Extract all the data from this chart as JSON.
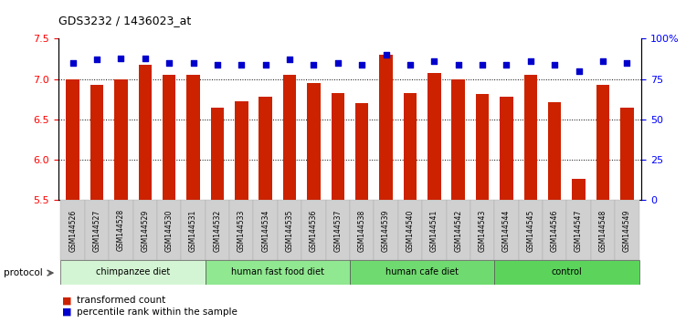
{
  "title": "GDS3232 / 1436023_at",
  "samples": [
    "GSM144526",
    "GSM144527",
    "GSM144528",
    "GSM144529",
    "GSM144530",
    "GSM144531",
    "GSM144532",
    "GSM144533",
    "GSM144534",
    "GSM144535",
    "GSM144536",
    "GSM144537",
    "GSM144538",
    "GSM144539",
    "GSM144540",
    "GSM144541",
    "GSM144542",
    "GSM144543",
    "GSM144544",
    "GSM144545",
    "GSM144546",
    "GSM144547",
    "GSM144548",
    "GSM144549"
  ],
  "bar_values": [
    7.0,
    6.93,
    7.0,
    7.18,
    7.05,
    7.05,
    6.65,
    6.73,
    6.78,
    7.05,
    6.95,
    6.83,
    6.7,
    7.3,
    6.83,
    7.08,
    7.0,
    6.82,
    6.78,
    7.05,
    6.72,
    5.77,
    6.93,
    6.65
  ],
  "percentile_values": [
    85,
    87,
    88,
    88,
    85,
    85,
    84,
    84,
    84,
    87,
    84,
    85,
    84,
    90,
    84,
    86,
    84,
    84,
    84,
    86,
    84,
    80,
    86,
    85
  ],
  "groups": [
    {
      "label": "chimpanzee diet",
      "start": 0,
      "end": 6,
      "color": "#d4f5d4"
    },
    {
      "label": "human fast food diet",
      "start": 6,
      "end": 12,
      "color": "#90e890"
    },
    {
      "label": "human cafe diet",
      "start": 12,
      "end": 18,
      "color": "#6fda6f"
    },
    {
      "label": "control",
      "start": 18,
      "end": 24,
      "color": "#5cd45c"
    }
  ],
  "bar_color": "#cc2200",
  "dot_color": "#0000cc",
  "ylim_left": [
    5.5,
    7.5
  ],
  "ylim_right": [
    0,
    100
  ],
  "yticks_left": [
    5.5,
    6.0,
    6.5,
    7.0,
    7.5
  ],
  "yticks_right": [
    0,
    25,
    50,
    75,
    100
  ],
  "ytick_labels_right": [
    "0",
    "25",
    "50",
    "75",
    "100%"
  ],
  "grid_values": [
    6.0,
    6.5,
    7.0
  ],
  "background_color": "#ffffff",
  "plot_bg": "#ffffff"
}
